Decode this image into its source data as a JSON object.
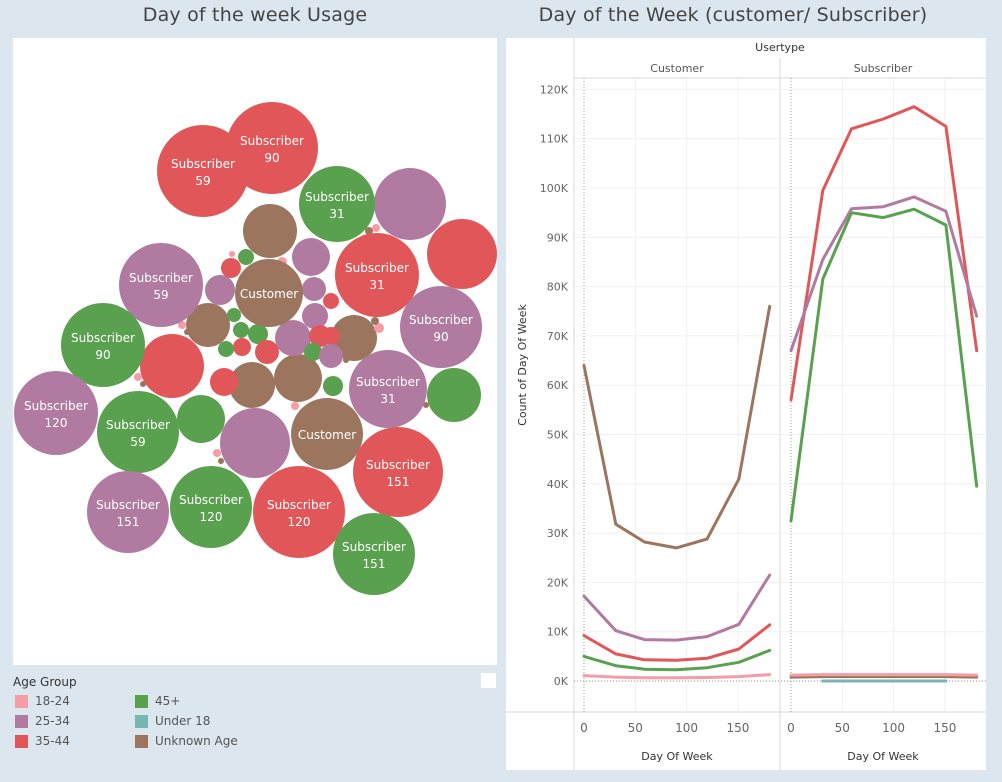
{
  "titles": {
    "left": "Day of the week Usage",
    "right": "Day of the Week (customer/ Subscriber)"
  },
  "colors": {
    "18-24": "#f59ca5",
    "25-34": "#b07aa1",
    "35-44": "#e15759",
    "45+": "#59a14f",
    "Under 18": "#76b7b2",
    "Unknown Age": "#9c755f"
  },
  "legend": {
    "title": "Age Group",
    "items": [
      "18-24",
      "25-34",
      "35-44",
      "45+",
      "Under 18",
      "Unknown Age"
    ]
  },
  "chart_data": [
    {
      "type": "bubble",
      "title": "Day of the week Usage",
      "bubbles": [
        {
          "label": "Subscriber",
          "value": "90",
          "group": "35-44"
        },
        {
          "label": "Subscriber",
          "value": "59",
          "group": "35-44"
        },
        {
          "label": "Subscriber",
          "value": "31",
          "group": "45+"
        },
        {
          "label": "Subscriber",
          "value": "31",
          "group": "35-44"
        },
        {
          "label": "Subscriber",
          "value": "59",
          "group": "25-34"
        },
        {
          "label": "Customer",
          "value": "",
          "group": "Unknown Age"
        },
        {
          "label": "Subscriber",
          "value": "90",
          "group": "25-34"
        },
        {
          "label": "Subscriber",
          "value": "90",
          "group": "45+"
        },
        {
          "label": "Subscriber",
          "value": "31",
          "group": "25-34"
        },
        {
          "label": "Subscriber",
          "value": "120",
          "group": "25-34"
        },
        {
          "label": "Subscriber",
          "value": "59",
          "group": "45+"
        },
        {
          "label": "Customer",
          "value": "",
          "group": "Unknown Age"
        },
        {
          "label": "Subscriber",
          "value": "151",
          "group": "35-44"
        },
        {
          "label": "Subscriber",
          "value": "151",
          "group": "25-34"
        },
        {
          "label": "Subscriber",
          "value": "120",
          "group": "45+"
        },
        {
          "label": "Subscriber",
          "value": "120",
          "group": "35-44"
        },
        {
          "label": "Subscriber",
          "value": "151",
          "group": "45+"
        }
      ]
    },
    {
      "type": "line",
      "title": "Day of the Week (customer/ Subscriber)",
      "column_header": "Usertype",
      "panels": [
        "Customer",
        "Subscriber"
      ],
      "xlabel": "Day Of Week",
      "ylabel": "Count of Day Of Week",
      "x_ticks": [
        0,
        50,
        100,
        150
      ],
      "y_ticks": [
        "0K",
        "10K",
        "20K",
        "30K",
        "40K",
        "50K",
        "60K",
        "70K",
        "80K",
        "90K",
        "100K",
        "110K",
        "120K"
      ],
      "ylim": [
        0,
        122000
      ],
      "x": [
        0,
        31,
        59,
        90,
        120,
        151,
        181
      ],
      "series": {
        "Customer": [
          {
            "group": "Unknown Age",
            "values": [
              64000,
              31800,
              28200,
              27000,
              28800,
              41000,
              76000
            ]
          },
          {
            "group": "25-34",
            "values": [
              17200,
              10200,
              8400,
              8300,
              9000,
              11500,
              21500
            ]
          },
          {
            "group": "35-44",
            "values": [
              9200,
              5500,
              4300,
              4200,
              4600,
              6500,
              11400
            ]
          },
          {
            "group": "45+",
            "values": [
              5000,
              3100,
              2400,
              2300,
              2700,
              3800,
              6200
            ]
          },
          {
            "group": "18-24",
            "values": [
              1100,
              800,
              650,
              650,
              700,
              900,
              1300
            ]
          }
        ],
        "Subscriber": [
          {
            "group": "35-44",
            "values": [
              57000,
              99500,
              112000,
              114000,
              116500,
              112500,
              67000
            ]
          },
          {
            "group": "25-34",
            "values": [
              67000,
              85500,
              95800,
              96200,
              98200,
              95300,
              74000
            ]
          },
          {
            "group": "45+",
            "values": [
              32500,
              81500,
              95000,
              94000,
              95700,
              92500,
              39500
            ]
          },
          {
            "group": "Unknown Age",
            "values": [
              800,
              900,
              900,
              900,
              900,
              900,
              800
            ]
          },
          {
            "group": "18-24",
            "values": [
              1200,
              1300,
              1300,
              1300,
              1300,
              1300,
              1200
            ]
          },
          {
            "group": "Under 18",
            "x": [
              31,
              151
            ],
            "values": [
              0,
              0
            ]
          }
        ]
      }
    }
  ]
}
